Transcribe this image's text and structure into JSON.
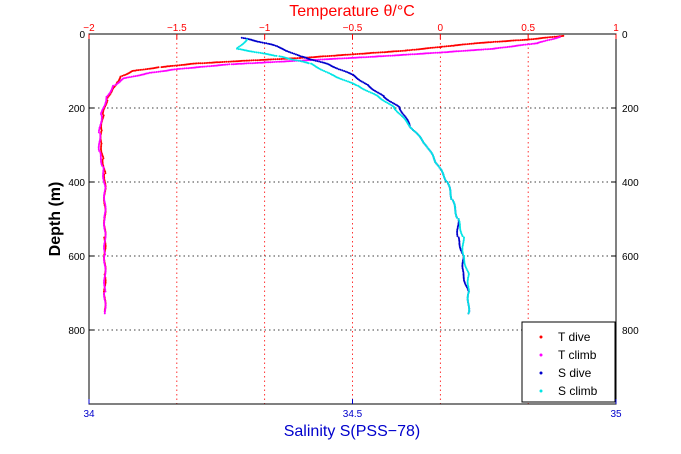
{
  "chart_data": {
    "type": "scatter",
    "title": "",
    "temperature_axis": {
      "label": "Temperature θ/°C",
      "range": [
        -2,
        1
      ],
      "ticks": [
        "−2",
        "−1.5",
        "−1",
        "−0.5",
        "0",
        "0.5",
        "1"
      ],
      "color": "#ff0000"
    },
    "salinity_axis": {
      "label": "Salinity S(PSS−78)",
      "range": [
        34,
        35
      ],
      "ticks": [
        "34",
        "34.5",
        "35"
      ],
      "color": "#0000cc"
    },
    "depth_axis": {
      "label": "Depth (m)",
      "range": [
        0,
        1000
      ],
      "reversed": true,
      "ticks": [
        "0",
        "200",
        "400",
        "600",
        "800"
      ]
    },
    "grid": true,
    "legend_position": "bottom-right",
    "series": [
      {
        "name": "T dive",
        "axis": "temperature",
        "color": "#ff0000",
        "points": [
          [
            0.7,
            5
          ],
          [
            0.5,
            15
          ],
          [
            0.2,
            25
          ],
          [
            0.0,
            35
          ],
          [
            -0.2,
            45
          ],
          [
            -0.5,
            55
          ],
          [
            -0.8,
            65
          ],
          [
            -1.1,
            72
          ],
          [
            -1.4,
            80
          ],
          [
            -1.6,
            90
          ],
          [
            -1.75,
            100
          ],
          [
            -1.82,
            115
          ],
          [
            -1.84,
            130
          ],
          [
            -1.87,
            150
          ],
          [
            -1.9,
            180
          ],
          [
            -1.92,
            220
          ],
          [
            -1.93,
            260
          ],
          [
            -1.93,
            300
          ],
          [
            -1.92,
            340
          ],
          [
            -1.91,
            380
          ],
          [
            -1.91,
            450
          ],
          [
            -1.91,
            550
          ],
          [
            -1.91,
            650
          ],
          [
            -1.91,
            750
          ]
        ]
      },
      {
        "name": "T climb",
        "axis": "temperature",
        "color": "#ff00ff",
        "points": [
          [
            0.68,
            8
          ],
          [
            0.55,
            25
          ],
          [
            0.3,
            40
          ],
          [
            0.0,
            50
          ],
          [
            -0.4,
            62
          ],
          [
            -0.8,
            72
          ],
          [
            -1.2,
            82
          ],
          [
            -1.5,
            95
          ],
          [
            -1.65,
            105
          ],
          [
            -1.8,
            120
          ],
          [
            -1.86,
            140
          ],
          [
            -1.9,
            170
          ],
          [
            -1.93,
            220
          ],
          [
            -1.94,
            270
          ],
          [
            -1.94,
            320
          ],
          [
            -1.92,
            360
          ],
          [
            -1.91,
            420
          ],
          [
            -1.91,
            500
          ],
          [
            -1.91,
            600
          ],
          [
            -1.91,
            700
          ],
          [
            -1.91,
            755
          ]
        ]
      },
      {
        "name": "S dive",
        "axis": "salinity",
        "color": "#0000cc",
        "points": [
          [
            34.29,
            10
          ],
          [
            34.35,
            30
          ],
          [
            34.4,
            60
          ],
          [
            34.45,
            80
          ],
          [
            34.5,
            110
          ],
          [
            34.53,
            140
          ],
          [
            34.56,
            170
          ],
          [
            34.59,
            200
          ],
          [
            34.61,
            250
          ],
          [
            34.64,
            300
          ],
          [
            34.66,
            350
          ],
          [
            34.68,
            400
          ],
          [
            34.69,
            450
          ],
          [
            34.7,
            500
          ],
          [
            34.7,
            550
          ],
          [
            34.71,
            600
          ],
          [
            34.71,
            650
          ],
          [
            34.72,
            700
          ],
          [
            34.72,
            755
          ]
        ]
      },
      {
        "name": "S climb",
        "axis": "salinity",
        "color": "#00e5e5",
        "points": [
          [
            34.3,
            15
          ],
          [
            34.28,
            40
          ],
          [
            34.36,
            60
          ],
          [
            34.42,
            80
          ],
          [
            34.46,
            110
          ],
          [
            34.51,
            140
          ],
          [
            34.55,
            170
          ],
          [
            34.58,
            200
          ],
          [
            34.61,
            250
          ],
          [
            34.64,
            300
          ],
          [
            34.66,
            350
          ],
          [
            34.68,
            400
          ],
          [
            34.69,
            450
          ],
          [
            34.7,
            500
          ],
          [
            34.71,
            550
          ],
          [
            34.71,
            600
          ],
          [
            34.72,
            650
          ],
          [
            34.72,
            700
          ],
          [
            34.72,
            755
          ]
        ]
      }
    ]
  }
}
